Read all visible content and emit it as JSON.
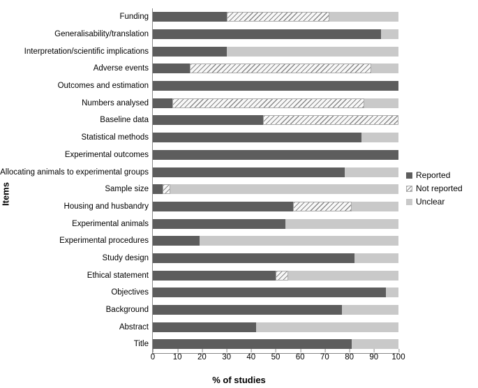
{
  "chart": {
    "type": "stacked-bar-horizontal",
    "x_axis_title": "% of studies",
    "y_axis_title": "Items",
    "xlim": [
      0,
      100
    ],
    "x_tick_step": 10,
    "x_ticks": [
      0,
      10,
      20,
      30,
      40,
      50,
      60,
      70,
      80,
      90,
      100
    ],
    "background_color": "#ffffff",
    "axis_color": "#888888",
    "series": [
      {
        "key": "reported",
        "label": "Reported",
        "fill": "#5d5d5d"
      },
      {
        "key": "notreported",
        "label": "Not reported",
        "fill": "hatch",
        "hatch_color": "#888888",
        "hatch_bg": "#f8f8f8"
      },
      {
        "key": "unclear",
        "label": "Unclear",
        "fill": "#c9c9c9"
      }
    ],
    "label_fontsize": 11.5,
    "title_fontsize": 13,
    "legend_fontsize": 12,
    "categories": [
      {
        "label": "Title",
        "reported": 81,
        "notreported": 0,
        "unclear": 19
      },
      {
        "label": "Abstract",
        "reported": 42,
        "notreported": 0,
        "unclear": 58
      },
      {
        "label": "Background",
        "reported": 77,
        "notreported": 0,
        "unclear": 23
      },
      {
        "label": "Objectives",
        "reported": 95,
        "notreported": 0,
        "unclear": 5
      },
      {
        "label": "Ethical statement",
        "reported": 50,
        "notreported": 5,
        "unclear": 45
      },
      {
        "label": "Study design",
        "reported": 82,
        "notreported": 0,
        "unclear": 18
      },
      {
        "label": "Experimental procedures",
        "reported": 19,
        "notreported": 0,
        "unclear": 81
      },
      {
        "label": "Experimental animals",
        "reported": 54,
        "notreported": 0,
        "unclear": 46
      },
      {
        "label": "Housing and husbandry",
        "reported": 57,
        "notreported": 24,
        "unclear": 19
      },
      {
        "label": "Sample size",
        "reported": 4,
        "notreported": 3,
        "unclear": 93
      },
      {
        "label": "Allocating animals to experimental groups",
        "reported": 78,
        "notreported": 0,
        "unclear": 22
      },
      {
        "label": "Experimental outcomes",
        "reported": 100,
        "notreported": 0,
        "unclear": 0
      },
      {
        "label": "Statistical methods",
        "reported": 85,
        "notreported": 0,
        "unclear": 15
      },
      {
        "label": "Baseline data",
        "reported": 45,
        "notreported": 55,
        "unclear": 0
      },
      {
        "label": "Numbers analysed",
        "reported": 8,
        "notreported": 78,
        "unclear": 14
      },
      {
        "label": "Outcomes and estimation",
        "reported": 100,
        "notreported": 0,
        "unclear": 0
      },
      {
        "label": "Adverse events",
        "reported": 15,
        "notreported": 74,
        "unclear": 11
      },
      {
        "label": "Interpretation/scientific implications",
        "reported": 30,
        "notreported": 0,
        "unclear": 70
      },
      {
        "label": "Generalisability/translation",
        "reported": 93,
        "notreported": 0,
        "unclear": 7
      },
      {
        "label": "Funding",
        "reported": 30,
        "notreported": 42,
        "unclear": 28
      }
    ]
  }
}
